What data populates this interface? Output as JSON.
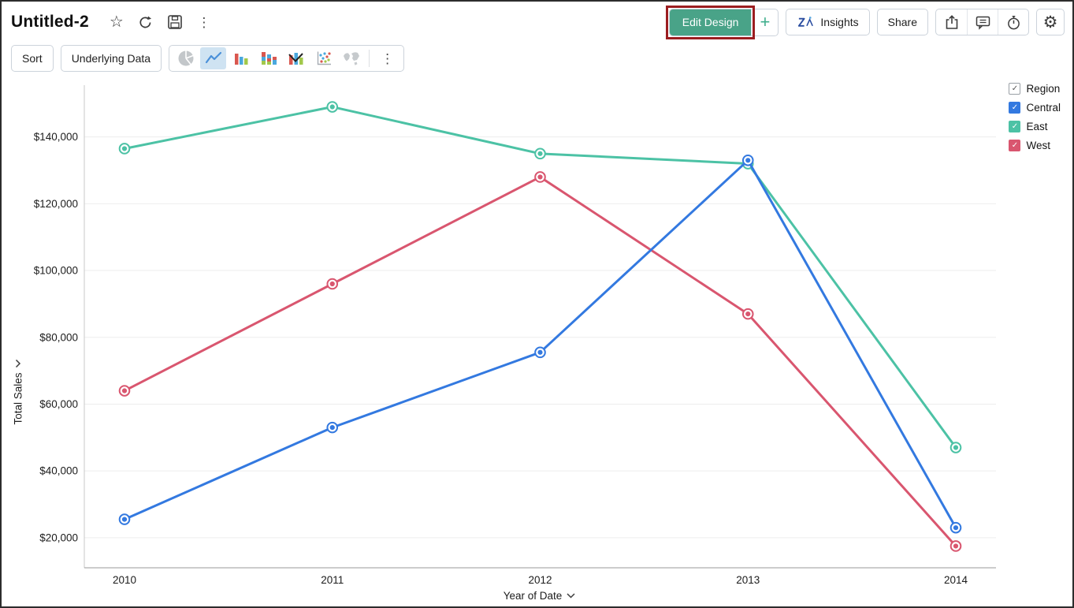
{
  "window": {
    "title": "Untitled-2"
  },
  "header": {
    "title": "Untitled-2",
    "left_icons": [
      "star-icon",
      "refresh-icon",
      "save-icon",
      "more-options-icon"
    ],
    "edit_design_label": "Edit Design",
    "add_label": "+",
    "insights_label": "Insights",
    "share_label": "Share",
    "right_icons": [
      "export-icon",
      "comment-icon",
      "alarm-icon",
      "settings-gear-icon"
    ],
    "edit_design_bg": "#49a388",
    "annotation_color": "#9b1d20"
  },
  "toolbar": {
    "sort_label": "Sort",
    "underlying_data_label": "Underlying Data",
    "chart_types": [
      {
        "name": "pie-chart-icon",
        "state": "disabled"
      },
      {
        "name": "line-chart-icon",
        "state": "selected"
      },
      {
        "name": "bar-chart-icon",
        "state": "normal"
      },
      {
        "name": "stacked-bar-chart-icon",
        "state": "normal"
      },
      {
        "name": "bar-line-chart-icon",
        "state": "normal"
      },
      {
        "name": "scatter-chart-icon",
        "state": "normal"
      },
      {
        "name": "map-chart-icon",
        "state": "disabled"
      },
      {
        "name": "more-chart-options-icon",
        "state": "normal"
      }
    ],
    "selected_bg": "#cfe3f2"
  },
  "legend": {
    "group": {
      "label": "Region",
      "checked": true
    },
    "items": [
      {
        "label": "Central",
        "color": "#3379e0",
        "checked": true
      },
      {
        "label": "East",
        "color": "#4cc2a5",
        "checked": true
      },
      {
        "label": "West",
        "color": "#d9566f",
        "checked": true
      }
    ]
  },
  "chart_data": {
    "type": "line",
    "title": "",
    "x": [
      "2010",
      "2011",
      "2012",
      "2013",
      "2014"
    ],
    "xlabel": "Year of Date",
    "ylabel": "Total Sales",
    "yticks": [
      20000,
      40000,
      60000,
      80000,
      100000,
      120000,
      140000
    ],
    "ytick_labels": [
      "$20,000",
      "$40,000",
      "$60,000",
      "$80,000",
      "$100,000",
      "$120,000",
      "$140,000"
    ],
    "ylim": [
      11000,
      155500
    ],
    "grid": true,
    "legend_position": "top-right",
    "series": [
      {
        "name": "Central",
        "color": "#3379e0",
        "values": [
          25500,
          53000,
          75500,
          133000,
          23000
        ]
      },
      {
        "name": "East",
        "color": "#4cc2a5",
        "values": [
          136500,
          149000,
          135000,
          132000,
          47000
        ]
      },
      {
        "name": "West",
        "color": "#d9566f",
        "values": [
          64000,
          96000,
          128000,
          87000,
          17500
        ]
      }
    ]
  }
}
